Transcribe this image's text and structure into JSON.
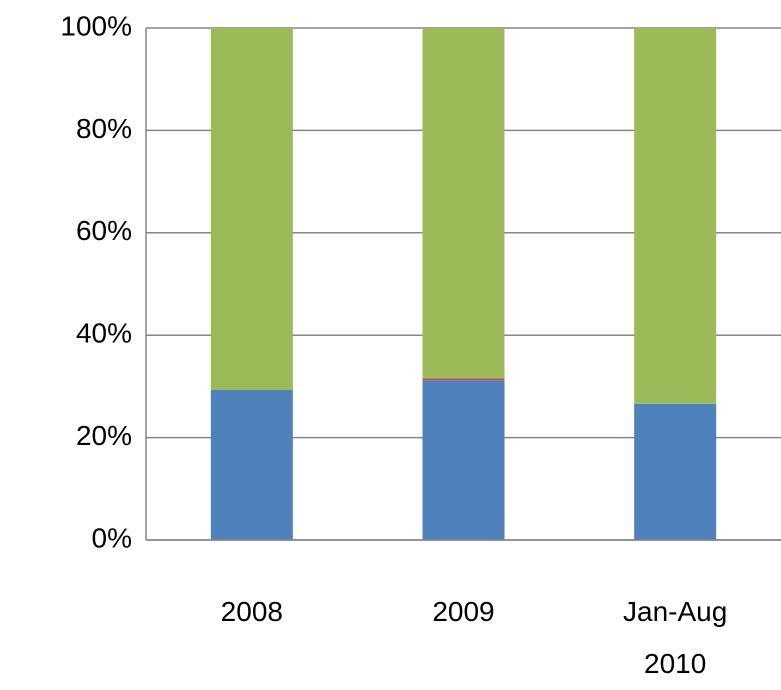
{
  "chart_data": {
    "type": "stacked-bar-100",
    "categories": [
      "2008",
      "2009",
      "Jan-Aug 2010"
    ],
    "series": [
      {
        "color": "#4f81bd",
        "values": [
          29.3,
          31.2,
          26.6
        ]
      },
      {
        "color": "#c0504d",
        "values": [
          0,
          0.4,
          0
        ]
      },
      {
        "color": "#9bbb59",
        "values": [
          70.7,
          68.4,
          73.4
        ]
      }
    ],
    "ylim": [
      0,
      100
    ],
    "yticks": [
      {
        "value": 0,
        "label": "0%"
      },
      {
        "value": 20,
        "label": "20%"
      },
      {
        "value": 40,
        "label": "40%"
      },
      {
        "value": 60,
        "label": "60%"
      },
      {
        "value": 80,
        "label": "80%"
      },
      {
        "value": 100,
        "label": "100%"
      }
    ],
    "grid": true
  }
}
